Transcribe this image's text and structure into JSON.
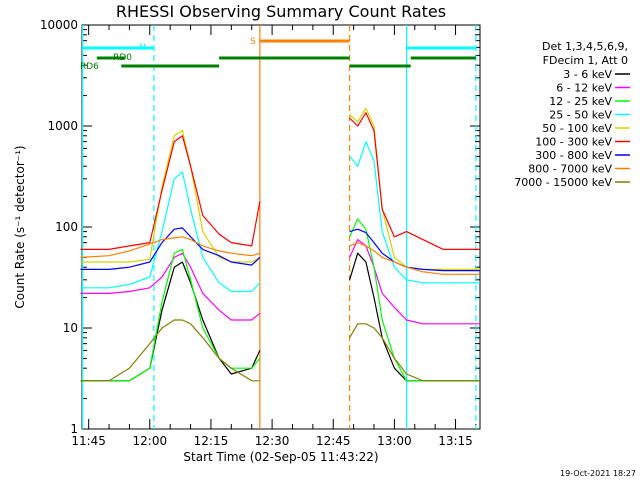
{
  "chart_data": {
    "type": "line",
    "title": "RHESSI Observing Summary Count Rates",
    "xlabel": "Start Time (02-Sep-05 11:43:22)",
    "ylabel": "Count Rate (s⁻¹ detector⁻¹)",
    "y_scale": "log",
    "ylim": [
      1,
      10000
    ],
    "xlim": [
      "11:43:22",
      "13:21:00"
    ],
    "x_ticks": [
      "11:45",
      "12:00",
      "12:15",
      "12:30",
      "12:45",
      "13:00",
      "13:15"
    ],
    "y_ticks": [
      "1",
      "10",
      "100",
      "1000",
      "10000"
    ],
    "legend": {
      "placement": "right",
      "header": [
        "Det 1,3,4,5,6,9,",
        "FDecim 1, Att 0"
      ]
    },
    "footer_date": "19-Oct-2021 18:27",
    "annotations": {
      "flags": [
        {
          "label": "N",
          "color": "#00ffff"
        },
        {
          "label": "S",
          "color": "#ff8000"
        },
        {
          "label": "RD0",
          "color": "#008000"
        },
        {
          "label": "RD6",
          "color": "#008000"
        }
      ]
    },
    "segments": [
      [
        "11:43",
        "12:27"
      ],
      [
        "12:49",
        "13:21"
      ]
    ],
    "series": [
      {
        "name": "3 - 6 keV",
        "color": "#000000",
        "x": [
          "11:43",
          "11:50",
          "11:55",
          "12:00",
          "12:03",
          "12:06",
          "12:08",
          "12:10",
          "12:13",
          "12:17",
          "12:20",
          "12:25",
          "12:27",
          "12:49",
          "12:51",
          "12:53",
          "12:55",
          "12:57",
          "13:00",
          "13:03",
          "13:07",
          "13:12",
          "13:21"
        ],
        "values": [
          3,
          3,
          3,
          4,
          15,
          40,
          45,
          28,
          12,
          5,
          3.5,
          4,
          6,
          30,
          55,
          45,
          20,
          8,
          4,
          3,
          3,
          3,
          3
        ]
      },
      {
        "name": "6 - 12 keV",
        "color": "#ff00ff",
        "x": [
          "11:43",
          "11:50",
          "11:55",
          "12:00",
          "12:03",
          "12:06",
          "12:08",
          "12:10",
          "12:13",
          "12:17",
          "12:20",
          "12:25",
          "12:27",
          "12:49",
          "12:51",
          "12:53",
          "12:55",
          "12:57",
          "13:00",
          "13:03",
          "13:07",
          "13:12",
          "13:21"
        ],
        "values": [
          22,
          22,
          23,
          25,
          32,
          50,
          55,
          40,
          22,
          15,
          12,
          12,
          14,
          50,
          75,
          65,
          40,
          22,
          16,
          12,
          11,
          11,
          11
        ]
      },
      {
        "name": "12 - 25 keV",
        "color": "#00ff00",
        "x": [
          "11:43",
          "11:50",
          "11:55",
          "12:00",
          "12:03",
          "12:06",
          "12:08",
          "12:10",
          "12:13",
          "12:17",
          "12:20",
          "12:25",
          "12:27",
          "12:49",
          "12:51",
          "12:53",
          "12:55",
          "12:57",
          "13:00",
          "13:03",
          "13:07",
          "13:12",
          "13:21"
        ],
        "values": [
          3,
          3,
          3,
          4,
          18,
          55,
          60,
          30,
          10,
          5,
          4,
          4,
          5,
          80,
          120,
          95,
          40,
          12,
          5,
          3,
          3,
          3,
          3
        ]
      },
      {
        "name": "25 - 50 keV",
        "color": "#00ffff",
        "x": [
          "11:43",
          "11:50",
          "11:55",
          "12:00",
          "12:03",
          "12:06",
          "12:08",
          "12:10",
          "12:13",
          "12:17",
          "12:20",
          "12:25",
          "12:27",
          "12:49",
          "12:51",
          "12:53",
          "12:55",
          "12:57",
          "13:00",
          "13:03",
          "13:07",
          "13:12",
          "13:21"
        ],
        "values": [
          25,
          25,
          27,
          32,
          90,
          300,
          350,
          150,
          50,
          28,
          23,
          23,
          28,
          500,
          400,
          700,
          450,
          90,
          40,
          30,
          28,
          28,
          28
        ]
      },
      {
        "name": "50 - 100 keV",
        "color": "#d4d400",
        "x": [
          "11:43",
          "11:50",
          "11:55",
          "12:00",
          "12:03",
          "12:06",
          "12:08",
          "12:10",
          "12:13",
          "12:17",
          "12:20",
          "12:25",
          "12:27",
          "12:49",
          "12:51",
          "12:53",
          "12:55",
          "12:57",
          "13:00",
          "13:03",
          "13:07",
          "13:12",
          "13:21"
        ],
        "values": [
          45,
          45,
          45,
          48,
          250,
          800,
          900,
          400,
          90,
          50,
          45,
          45,
          50,
          1300,
          1100,
          1500,
          1000,
          150,
          50,
          40,
          38,
          38,
          38
        ]
      },
      {
        "name": "100 - 300 keV",
        "color": "#ff0000",
        "x": [
          "11:43",
          "11:50",
          "11:55",
          "12:00",
          "12:03",
          "12:06",
          "12:08",
          "12:10",
          "12:13",
          "12:17",
          "12:20",
          "12:25",
          "12:27",
          "12:49",
          "12:51",
          "12:53",
          "12:55",
          "12:57",
          "13:00",
          "13:03",
          "13:07",
          "13:12",
          "13:21"
        ],
        "values": [
          60,
          60,
          65,
          70,
          230,
          700,
          800,
          400,
          130,
          85,
          70,
          65,
          180,
          1200,
          1000,
          1350,
          900,
          150,
          80,
          90,
          75,
          60,
          60
        ]
      },
      {
        "name": "300 - 800 keV",
        "color": "#0000ff",
        "x": [
          "11:43",
          "11:50",
          "11:55",
          "12:00",
          "12:03",
          "12:06",
          "12:08",
          "12:10",
          "12:13",
          "12:17",
          "12:20",
          "12:25",
          "12:27",
          "12:49",
          "12:51",
          "12:53",
          "12:55",
          "12:57",
          "13:00",
          "13:03",
          "13:07",
          "13:12",
          "13:21"
        ],
        "values": [
          38,
          38,
          40,
          45,
          70,
          95,
          98,
          80,
          60,
          52,
          45,
          42,
          50,
          90,
          95,
          88,
          70,
          55,
          45,
          40,
          38,
          37,
          37
        ]
      },
      {
        "name": "800 - 7000 keV",
        "color": "#ff8000",
        "x": [
          "11:43",
          "11:50",
          "11:55",
          "12:00",
          "12:03",
          "12:06",
          "12:08",
          "12:10",
          "12:13",
          "12:17",
          "12:20",
          "12:25",
          "12:27",
          "12:49",
          "12:51",
          "12:53",
          "12:55",
          "12:57",
          "13:00",
          "13:03",
          "13:07",
          "13:12",
          "13:21"
        ],
        "values": [
          50,
          52,
          58,
          68,
          75,
          78,
          80,
          75,
          65,
          58,
          55,
          52,
          55,
          65,
          70,
          65,
          58,
          50,
          45,
          40,
          36,
          34,
          34
        ]
      },
      {
        "name": "7000 - 15000 keV",
        "color": "#808000",
        "x": [
          "11:43",
          "11:50",
          "11:55",
          "12:00",
          "12:03",
          "12:06",
          "12:08",
          "12:10",
          "12:13",
          "12:17",
          "12:20",
          "12:25",
          "12:27",
          "12:49",
          "12:51",
          "12:53",
          "12:55",
          "12:57",
          "13:00",
          "13:03",
          "13:07",
          "13:12",
          "13:21"
        ],
        "values": [
          3,
          3,
          4,
          7,
          10,
          12,
          12,
          11,
          8,
          5,
          4,
          3,
          3,
          8,
          11,
          11,
          10,
          8,
          5,
          3.5,
          3,
          3,
          3
        ]
      }
    ]
  }
}
